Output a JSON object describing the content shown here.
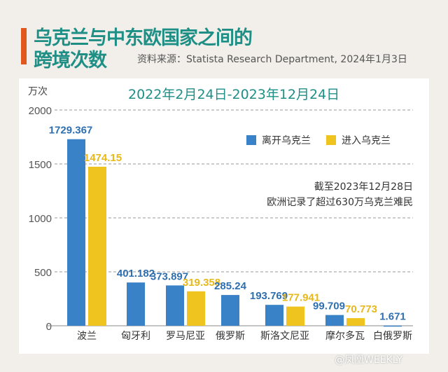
{
  "title_line1": "乌克兰与中东欧国家之间的",
  "title_line2": "跨境次数",
  "source": "资料来源：Statista Research Department, 2024年1月3日",
  "watermark": "@凤凰WEEKLY",
  "annotation": [
    "截至2023年12月28日",
    "欧洲记录了超过630万乌克兰难民"
  ],
  "chart_data": {
    "type": "bar",
    "subtitle": "2022年2月24日-2023年12月24日",
    "ylabel": "万次",
    "ylim": [
      0,
      2000
    ],
    "yticks": [
      0,
      500,
      1000,
      1500,
      2000
    ],
    "grid": true,
    "legend_position": "top-right",
    "categories": [
      "波兰",
      "匈牙利",
      "罗马尼亚",
      "俄罗斯",
      "斯洛文尼亚",
      "摩尔多瓦",
      "白俄罗斯"
    ],
    "series": [
      {
        "name": "离开乌克兰",
        "color": "#3a82c8",
        "values": [
          1729.367,
          401.182,
          373.897,
          285.24,
          193.769,
          99.709,
          1.671
        ],
        "labels": [
          "1729.367",
          "401.182",
          "373.897",
          "285.24",
          "193.769",
          "99.709",
          "1.671"
        ]
      },
      {
        "name": "进入乌克兰",
        "color": "#f0c41f",
        "values": [
          1474.15,
          null,
          319.358,
          null,
          177.941,
          70.773,
          null
        ],
        "labels": [
          "1474.15",
          "",
          "319.358",
          "",
          "177.941",
          "70.773",
          ""
        ]
      }
    ]
  }
}
